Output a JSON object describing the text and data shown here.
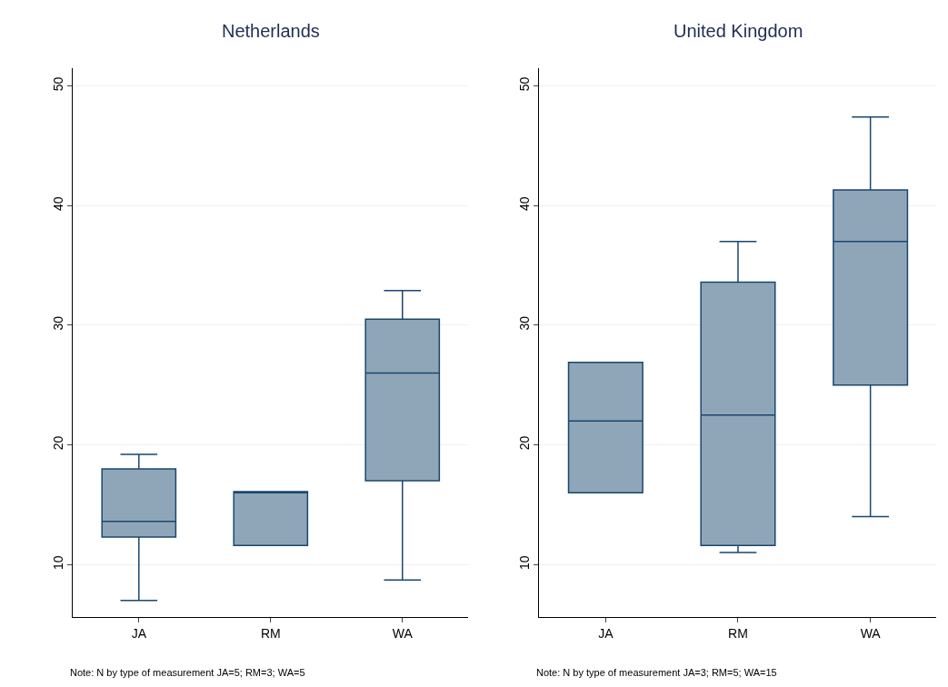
{
  "chart_data": [
    {
      "type": "box",
      "title": "Netherlands",
      "categories": [
        "JA",
        "RM",
        "WA"
      ],
      "color": "#8fa6b9",
      "boxes": [
        {
          "low": 7.0,
          "q1": 12.3,
          "median": 13.6,
          "q3": 18.0,
          "high": 19.2
        },
        {
          "low": 11.6,
          "q1": 11.6,
          "median": 16.0,
          "q3": 16.1,
          "high": 16.1
        },
        {
          "low": 8.7,
          "q1": 17.0,
          "median": 26.0,
          "q3": 30.5,
          "high": 32.9
        }
      ],
      "ylim": [
        5.6,
        51.5
      ],
      "yticks": [
        10,
        20,
        30,
        40,
        50
      ],
      "grid": "y",
      "legend": false,
      "annotations": [
        "Note: N by type of measurement JA=5; RM=3; WA=5"
      ]
    },
    {
      "type": "box",
      "title": "United Kingdom",
      "categories": [
        "JA",
        "RM",
        "WA"
      ],
      "color": "#8fa6b9",
      "boxes": [
        {
          "low": 16.0,
          "q1": 16.0,
          "median": 22.0,
          "q3": 26.9,
          "high": 26.9
        },
        {
          "low": 11.0,
          "q1": 11.6,
          "median": 22.5,
          "q3": 33.6,
          "high": 37.0
        },
        {
          "low": 14.0,
          "q1": 25.0,
          "median": 37.0,
          "q3": 41.3,
          "high": 47.4
        }
      ],
      "ylim": [
        5.6,
        51.5
      ],
      "yticks": [
        10,
        20,
        30,
        40,
        50
      ],
      "grid": "y",
      "legend": false,
      "annotations": [
        "Note: N by type of measurement JA=3; RM=5; WA=15"
      ]
    }
  ]
}
